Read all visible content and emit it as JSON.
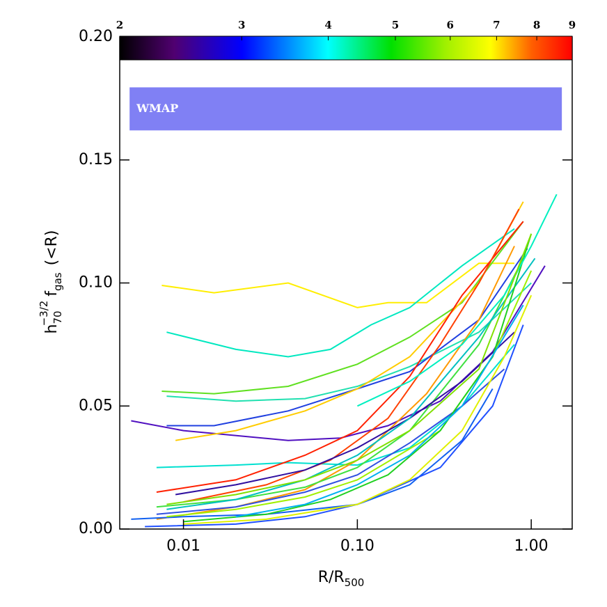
{
  "chart_data": {
    "type": "line",
    "xlabel": [
      "R/R",
      "500"
    ],
    "ylabel": [
      "h",
      "70",
      "−3/2",
      "f",
      "gas",
      "(<R)"
    ],
    "xlog": true,
    "xlim": [
      0.0043,
      1.72
    ],
    "ylim": [
      0,
      0.2
    ],
    "xticks": [
      {
        "value": 0.01,
        "label": "0.01"
      },
      {
        "value": 0.1,
        "label": "0.10"
      },
      {
        "value": 1,
        "label": "1.00"
      }
    ],
    "yticks": [
      {
        "value": 0,
        "label": "0.00"
      },
      {
        "value": 0.05,
        "label": "0.05"
      },
      {
        "value": 0.1,
        "label": "0.10"
      },
      {
        "value": 0.15,
        "label": "0.15"
      },
      {
        "value": 0.2,
        "label": "0.20"
      }
    ],
    "band": {
      "label": "WMAP",
      "xlim": [
        0.0049,
        1.5
      ],
      "ylim": [
        0.162,
        0.1795
      ],
      "color": "#8080f4"
    },
    "colorbar": {
      "lim": [
        2,
        9
      ],
      "log": true,
      "ticks": [
        2,
        3,
        4,
        5,
        6,
        7,
        8,
        9
      ]
    },
    "series": [
      {
        "color": "#ffee00",
        "x": [
          0.0075,
          0.015,
          0.04,
          0.1,
          0.15,
          0.25,
          0.5,
          0.8
        ],
        "values": [
          0.099,
          0.096,
          0.1,
          0.09,
          0.092,
          0.092,
          0.108,
          0.108
        ]
      },
      {
        "color": "#00e8c0",
        "x": [
          0.008,
          0.02,
          0.04,
          0.07,
          0.12,
          0.2,
          0.4,
          0.8
        ],
        "values": [
          0.08,
          0.073,
          0.07,
          0.073,
          0.083,
          0.09,
          0.107,
          0.122
        ]
      },
      {
        "color": "#60e020",
        "x": [
          0.0075,
          0.015,
          0.04,
          0.1,
          0.2,
          0.4,
          0.9
        ],
        "values": [
          0.056,
          0.055,
          0.058,
          0.067,
          0.078,
          0.092,
          0.125
        ]
      },
      {
        "color": "#20e0b0",
        "x": [
          0.008,
          0.02,
          0.05,
          0.1,
          0.2,
          0.5,
          1.0
        ],
        "values": [
          0.054,
          0.052,
          0.053,
          0.058,
          0.066,
          0.08,
          0.1
        ]
      },
      {
        "color": "#2040e0",
        "x": [
          0.008,
          0.015,
          0.04,
          0.1,
          0.2,
          0.5,
          0.95
        ],
        "values": [
          0.042,
          0.042,
          0.048,
          0.057,
          0.064,
          0.085,
          0.114
        ]
      },
      {
        "color": "#5010c0",
        "x": [
          0.005,
          0.01,
          0.04,
          0.08,
          0.15,
          0.3,
          0.6,
          1.2
        ],
        "values": [
          0.044,
          0.04,
          0.036,
          0.037,
          0.042,
          0.052,
          0.072,
          0.107
        ]
      },
      {
        "color": "#ffcc00",
        "x": [
          0.009,
          0.02,
          0.05,
          0.1,
          0.2,
          0.5,
          0.9
        ],
        "values": [
          0.036,
          0.04,
          0.048,
          0.057,
          0.07,
          0.1,
          0.133
        ]
      },
      {
        "color": "#00e0d0",
        "x": [
          0.007,
          0.02,
          0.04,
          0.1,
          0.2,
          0.4,
          0.8
        ],
        "values": [
          0.025,
          0.026,
          0.027,
          0.026,
          0.033,
          0.05,
          0.075
        ]
      },
      {
        "color": "#ff2000",
        "x": [
          0.007,
          0.02,
          0.05,
          0.1,
          0.2,
          0.4,
          0.6,
          0.9
        ],
        "values": [
          0.015,
          0.02,
          0.03,
          0.04,
          0.062,
          0.095,
          0.11,
          0.125
        ]
      },
      {
        "color": "#ff4000",
        "x": [
          0.01,
          0.03,
          0.07,
          0.15,
          0.3,
          0.5,
          0.85
        ],
        "values": [
          0.011,
          0.018,
          0.028,
          0.045,
          0.075,
          0.1,
          0.13
        ]
      },
      {
        "color": "#ff9900",
        "x": [
          0.007,
          0.02,
          0.05,
          0.1,
          0.25,
          0.5,
          0.8
        ],
        "values": [
          0.004,
          0.009,
          0.016,
          0.028,
          0.055,
          0.085,
          0.115
        ]
      },
      {
        "color": "#1060f0",
        "x": [
          0.005,
          0.01,
          0.03,
          0.1,
          0.2,
          0.4,
          0.6
        ],
        "values": [
          0.004,
          0.005,
          0.006,
          0.01,
          0.018,
          0.036,
          0.057
        ]
      },
      {
        "color": "#2050ff",
        "x": [
          0.006,
          0.02,
          0.05,
          0.1,
          0.3,
          0.6,
          0.9
        ],
        "values": [
          0.001,
          0.002,
          0.005,
          0.01,
          0.025,
          0.05,
          0.083
        ]
      },
      {
        "color": "#40e040",
        "x": [
          0.007,
          0.02,
          0.05,
          0.1,
          0.2,
          0.5,
          0.9
        ],
        "values": [
          0.009,
          0.012,
          0.017,
          0.025,
          0.04,
          0.075,
          0.11
        ]
      },
      {
        "color": "#a0f000",
        "x": [
          0.008,
          0.02,
          0.05,
          0.1,
          0.3,
          0.6,
          1.0
        ],
        "values": [
          0.005,
          0.008,
          0.013,
          0.02,
          0.04,
          0.07,
          0.105
        ]
      },
      {
        "color": "#3010a0",
        "x": [
          0.009,
          0.02,
          0.05,
          0.1,
          0.2,
          0.4,
          0.8
        ],
        "values": [
          0.014,
          0.018,
          0.024,
          0.033,
          0.045,
          0.06,
          0.08
        ]
      },
      {
        "color": "#3050e0",
        "x": [
          0.007,
          0.02,
          0.05,
          0.1,
          0.2,
          0.4,
          0.7
        ],
        "values": [
          0.006,
          0.009,
          0.015,
          0.022,
          0.035,
          0.05,
          0.065
        ]
      },
      {
        "color": "#00c0c0",
        "x": [
          0.008,
          0.02,
          0.05,
          0.1,
          0.2,
          0.5,
          1.05
        ],
        "values": [
          0.008,
          0.012,
          0.02,
          0.03,
          0.045,
          0.078,
          0.11
        ]
      },
      {
        "color": "#20d020",
        "x": [
          0.01,
          0.03,
          0.07,
          0.15,
          0.3,
          0.6,
          1.0
        ],
        "values": [
          0.003,
          0.006,
          0.012,
          0.022,
          0.04,
          0.07,
          0.12
        ]
      },
      {
        "color": "#00f0c0",
        "x": [
          0.1,
          0.2,
          0.4,
          0.7,
          1.0,
          1.4
        ],
        "values": [
          0.05,
          0.06,
          0.075,
          0.095,
          0.115,
          0.136
        ]
      },
      {
        "color": "#e0f000",
        "x": [
          0.01,
          0.03,
          0.1,
          0.2,
          0.4,
          0.7,
          1.0
        ],
        "values": [
          0.002,
          0.004,
          0.01,
          0.02,
          0.04,
          0.07,
          0.095
        ]
      },
      {
        "color": "#80e000",
        "x": [
          0.008,
          0.02,
          0.05,
          0.1,
          0.2,
          0.5,
          1.0
        ],
        "values": [
          0.01,
          0.014,
          0.02,
          0.028,
          0.04,
          0.065,
          0.12
        ]
      },
      {
        "color": "#00b0f0",
        "x": [
          0.02,
          0.05,
          0.1,
          0.2,
          0.4,
          0.9
        ],
        "values": [
          0.005,
          0.01,
          0.018,
          0.03,
          0.05,
          0.091
        ]
      }
    ]
  }
}
